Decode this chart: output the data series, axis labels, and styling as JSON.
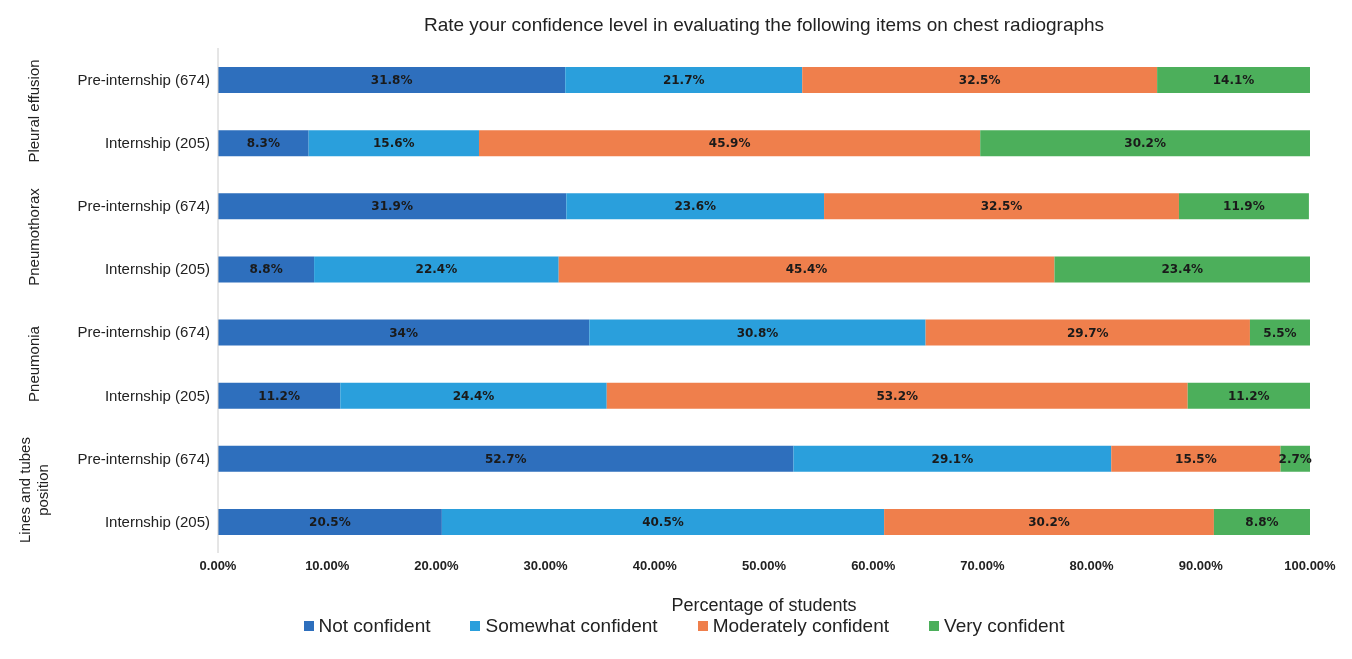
{
  "chart_data": {
    "type": "bar",
    "orientation": "horizontal",
    "stacked": true,
    "title": "Rate your confidence level in evaluating the following items on chest radiographs",
    "xlabel": "Percentage of students",
    "categories": [
      "Pre-internship (674)",
      "Internship (205)",
      "Pre-internship (674)",
      "Internship (205)",
      "Pre-internship (674)",
      "Internship (205)",
      "Pre-internship (674)",
      "Internship (205)"
    ],
    "annotations": [
      "Pleural effusion",
      "Pneumothorax",
      "Pneumonia",
      "Lines and tubes position"
    ],
    "series": [
      {
        "name": "Not confident",
        "color": "#2e6fbd",
        "values": [
          31.8,
          8.3,
          31.9,
          8.8,
          34,
          11.2,
          52.7,
          20.5
        ],
        "value_labels": [
          "31.8%",
          "8.3%",
          "31.9%",
          "8.8%",
          "34%",
          "11.2%",
          "52.7%",
          "20.5%"
        ]
      },
      {
        "name": "Somewhat confident",
        "color": "#2a9fdc",
        "values": [
          21.7,
          15.6,
          23.6,
          22.4,
          30.8,
          24.4,
          29.1,
          40.5
        ],
        "value_labels": [
          "21.7%",
          "15.6%",
          "23.6%",
          "22.4%",
          "30.8%",
          "24.4%",
          "29.1%",
          "40.5%"
        ]
      },
      {
        "name": "Moderately confident",
        "color": "#ef7f4c",
        "values": [
          32.5,
          45.9,
          32.5,
          45.4,
          29.7,
          53.2,
          15.5,
          30.2
        ],
        "value_labels": [
          "32.5%",
          "45.9%",
          "32.5%",
          "45.4%",
          "29.7%",
          "53.2%",
          "15.5%",
          "30.2%"
        ]
      },
      {
        "name": "Very confident",
        "color": "#4caf5b",
        "values": [
          14.1,
          30.2,
          11.9,
          23.4,
          5.5,
          11.2,
          2.7,
          8.8
        ],
        "value_labels": [
          "14.1%",
          "30.2%",
          "11.9%",
          "23.4%",
          "5.5%",
          "11.2%",
          "2.7%",
          "8.8%"
        ]
      }
    ],
    "xlim": [
      0,
      100
    ],
    "xticks": [
      {
        "value": 0,
        "label": "0.00%"
      },
      {
        "value": 10,
        "label": "10.00%"
      },
      {
        "value": 20,
        "label": "20.00%"
      },
      {
        "value": 30,
        "label": "30.00%"
      },
      {
        "value": 40,
        "label": "40.00%"
      },
      {
        "value": 50,
        "label": "50.00%"
      },
      {
        "value": 60,
        "label": "60.00%"
      },
      {
        "value": 70,
        "label": "70.00%"
      },
      {
        "value": 80,
        "label": "80.00%"
      },
      {
        "value": 90,
        "label": "90.00%"
      },
      {
        "value": 100,
        "label": "100.00%"
      }
    ],
    "legend": "bottom"
  }
}
